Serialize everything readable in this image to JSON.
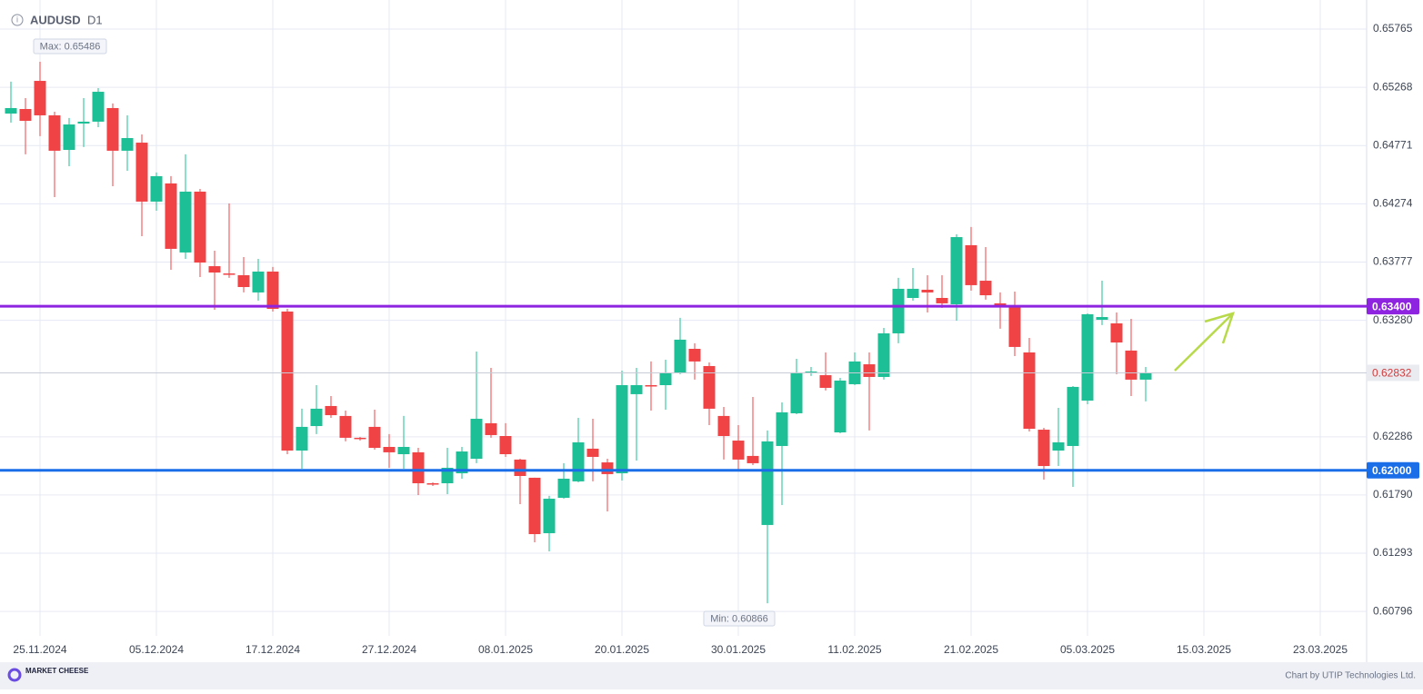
{
  "header": {
    "symbol": "AUDUSD",
    "timeframe": "D1"
  },
  "footer": {
    "logo": "MARKET CHEESE",
    "credit": "Chart by UTIP Technologies Ltd."
  },
  "chart_data": {
    "type": "candlestick",
    "annotations": {
      "max": "Max: 0.65486",
      "min": "Min: 0.60866"
    },
    "categories": [
      null,
      null,
      "25.11.2024",
      null,
      null,
      null,
      null,
      null,
      null,
      null,
      "05.12.2024",
      null,
      null,
      null,
      null,
      null,
      null,
      null,
      "17.12.2024",
      null,
      null,
      null,
      null,
      null,
      null,
      null,
      "27.12.2024",
      null,
      null,
      null,
      null,
      null,
      null,
      null,
      "08.01.2025",
      null,
      null,
      null,
      null,
      null,
      null,
      null,
      "20.01.2025",
      null,
      null,
      null,
      null,
      null,
      null,
      null,
      "30.01.2025",
      null,
      null,
      null,
      null,
      null,
      null,
      null,
      "11.02.2025",
      null,
      null,
      null,
      null,
      null,
      null,
      null,
      "21.02.2025",
      null,
      null,
      null,
      null,
      null,
      null,
      null,
      "05.03.2025",
      null,
      null,
      null,
      null,
      null,
      null,
      null,
      "15.03.2025",
      null,
      null,
      null,
      null,
      null,
      null,
      null,
      "23.03.2025",
      null,
      null,
      null
    ],
    "open": [
      0.65044,
      0.65083,
      0.65323,
      0.65029,
      0.64734,
      0.64959,
      0.64975,
      0.65091,
      0.64727,
      0.64796,
      0.64293,
      0.64448,
      0.63859,
      0.64378,
      0.63742,
      0.6368,
      0.63665,
      0.63518,
      0.63696,
      0.63355,
      0.62169,
      0.62378,
      0.62549,
      0.62464,
      0.62278,
      0.62371,
      0.622,
      0.62138,
      0.62154,
      0.6189,
      0.6189,
      0.61975,
      0.62099,
      0.62402,
      0.62293,
      0.62092,
      0.61937,
      0.61464,
      0.61766,
      0.61906,
      0.62185,
      0.62068,
      0.61975,
      0.6265,
      0.62727,
      0.62727,
      0.62828,
      0.63037,
      0.6289,
      0.62464,
      0.62254,
      0.62123,
      0.61534,
      0.62208,
      0.62487,
      0.62828,
      0.62812,
      0.62324,
      0.62735,
      0.62905,
      0.62797,
      0.63169,
      0.63471,
      0.63541,
      0.63471,
      0.63417,
      0.63921,
      0.63618,
      0.63425,
      0.63401,
      0.63006,
      0.62347,
      0.62169,
      0.62208,
      0.62595,
      0.63285,
      0.63254,
      0.63022,
      0.62774,
      null,
      null,
      null,
      null,
      null,
      null,
      null,
      null,
      null,
      null,
      null,
      null,
      null,
      null,
      null
    ],
    "high": [
      0.65316,
      0.65176,
      0.65486,
      0.6506,
      0.65006,
      0.65176,
      0.65261,
      0.6513,
      0.65029,
      0.64866,
      0.64541,
      0.6451,
      0.64696,
      0.64401,
      0.63874,
      0.64277,
      0.6382,
      0.63804,
      0.63735,
      0.63378,
      0.62526,
      0.62727,
      0.62634,
      0.6251,
      0.62285,
      0.62518,
      0.62309,
      0.62464,
      0.62192,
      0.61898,
      0.62192,
      0.622,
      0.63014,
      0.62874,
      0.62402,
      0.62099,
      0.61937,
      0.61782,
      0.62061,
      0.62448,
      0.6244,
      0.62099,
      0.62851,
      0.62874,
      0.62929,
      0.62944,
      0.63301,
      0.63084,
      0.62921,
      0.62541,
      0.62386,
      0.62626,
      0.6234,
      0.6258,
      0.62952,
      0.62882,
      0.63006,
      0.62789,
      0.63006,
      0.63006,
      0.63215,
      0.63642,
      0.63727,
      0.63665,
      0.63665,
      0.64014,
      0.64076,
      0.63905,
      0.63518,
      0.63525,
      0.6313,
      0.62363,
      0.62533,
      0.62719,
      0.63339,
      0.63618,
      0.63347,
      0.63293,
      0.62882,
      null,
      null,
      null,
      null,
      null,
      null,
      null,
      null,
      null,
      null,
      null,
      null,
      null,
      null,
      null
    ],
    "low": [
      0.64967,
      0.64696,
      0.64851,
      0.64331,
      0.64595,
      0.64758,
      0.64928,
      0.64424,
      0.64556,
      0.63998,
      0.64215,
      0.63711,
      0.63804,
      0.63649,
      0.6337,
      0.63642,
      0.63518,
      0.63448,
      0.63355,
      0.62138,
      0.62014,
      0.62309,
      0.62448,
      0.62247,
      0.62254,
      0.62177,
      0.62022,
      0.62014,
      0.61789,
      0.61867,
      0.61797,
      0.61929,
      0.62061,
      0.62278,
      0.62115,
      0.61712,
      0.61386,
      0.61309,
      0.61758,
      0.61898,
      0.61906,
      0.6165,
      0.61913,
      0.62084,
      0.6251,
      0.62518,
      0.6282,
      0.62774,
      0.62386,
      0.62092,
      0.61991,
      0.62045,
      0.60866,
      0.61704,
      0.62479,
      0.62805,
      0.62681,
      0.62316,
      0.62727,
      0.6234,
      0.62774,
      0.63084,
      0.63448,
      0.63347,
      0.63386,
      0.63277,
      0.63533,
      0.63456,
      0.63208,
      0.62975,
      0.62332,
      0.61921,
      0.62037,
      0.61859,
      0.62564,
      0.63239,
      0.6282,
      0.62634,
      0.62588,
      null,
      null,
      null,
      null,
      null,
      null,
      null,
      null,
      null,
      null,
      null,
      null,
      null,
      null,
      null
    ],
    "close": [
      0.65091,
      0.64982,
      0.65029,
      0.64727,
      0.64951,
      0.64975,
      0.6523,
      0.64727,
      0.64835,
      0.64293,
      0.6451,
      0.6389,
      0.64378,
      0.63773,
      0.63688,
      0.63673,
      0.63564,
      0.63696,
      0.63378,
      0.62169,
      0.62371,
      0.62526,
      0.62471,
      0.62278,
      0.6227,
      0.62192,
      0.62154,
      0.622,
      0.6189,
      0.61882,
      0.62022,
      0.62161,
      0.6244,
      0.62301,
      0.62138,
      0.61952,
      0.61456,
      0.61758,
      0.61929,
      0.62239,
      0.62115,
      0.61968,
      0.62727,
      0.62727,
      0.62719,
      0.62828,
      0.63115,
      0.62929,
      0.62526,
      0.62293,
      0.62092,
      0.62061,
      0.62247,
      0.62495,
      0.62836,
      0.62843,
      0.62704,
      0.62766,
      0.62929,
      0.62797,
      0.63169,
      0.63549,
      0.63549,
      0.63518,
      0.63425,
      0.6399,
      0.6358,
      0.63494,
      0.63409,
      0.63053,
      0.62355,
      0.62037,
      0.62239,
      0.62712,
      0.63332,
      0.63308,
      0.63091,
      0.62774,
      0.62832,
      null,
      null,
      null,
      null,
      null,
      null,
      null,
      null,
      null,
      null,
      null,
      null,
      null,
      null,
      null
    ],
    "up_color": "#1dbf96",
    "down_color": "#ef4346",
    "ylim": [
      0.60588,
      0.66013
    ],
    "yticks": [
      0.60796,
      0.61293,
      {
        "value": 0.6179,
        "label": "0.61790"
      },
      0.62286,
      {
        "value": 0.6328,
        "label": "0.63280"
      },
      0.63777,
      0.64274,
      0.64771,
      0.65268,
      0.65765
    ],
    "grid": true,
    "levels": [
      {
        "value": 0.634,
        "label": "0.63400",
        "color": "#8e24e0"
      },
      {
        "value": 0.62,
        "label": "0.62000",
        "color": "#1a6fe8"
      }
    ],
    "last_price": 0.62832
  }
}
